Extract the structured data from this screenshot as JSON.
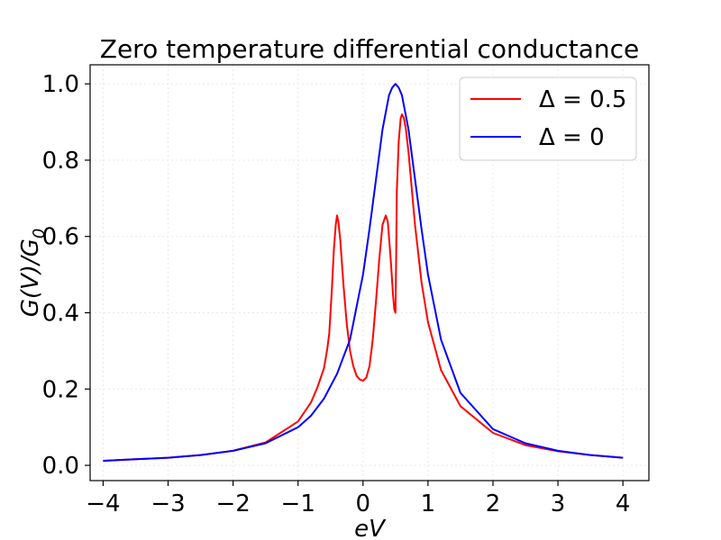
{
  "chart_data": {
    "type": "line",
    "title": "Zero temperature differential conductance",
    "xlabel": "eV",
    "ylabel_main": "G(V)/G",
    "ylabel_sub": "0",
    "xlim": [
      -4.2,
      4.4
    ],
    "ylim": [
      -0.04,
      1.05
    ],
    "xticks": [
      -4,
      -3,
      -2,
      -1,
      0,
      1,
      2,
      3,
      4
    ],
    "xtick_labels": [
      "−4",
      "−3",
      "−2",
      "−1",
      "0",
      "1",
      "2",
      "3",
      "4"
    ],
    "yticks": [
      0.0,
      0.2,
      0.4,
      0.6,
      0.8,
      1.0
    ],
    "ytick_labels": [
      "0.0",
      "0.2",
      "0.4",
      "0.6",
      "0.8",
      "1.0"
    ],
    "grid": true,
    "legend_position": "top-right",
    "series": [
      {
        "name": "Δ = 0.5",
        "color": "#ff0000",
        "x": [
          -4.0,
          -3.5,
          -3.0,
          -2.5,
          -2.0,
          -1.5,
          -1.0,
          -0.8,
          -0.7,
          -0.6,
          -0.55,
          -0.52,
          -0.5,
          -0.48,
          -0.45,
          -0.42,
          -0.4,
          -0.38,
          -0.35,
          -0.3,
          -0.25,
          -0.2,
          -0.15,
          -0.1,
          -0.05,
          0.0,
          0.05,
          0.1,
          0.15,
          0.2,
          0.25,
          0.3,
          0.35,
          0.38,
          0.4,
          0.43,
          0.46,
          0.48,
          0.5,
          0.51,
          0.52,
          0.55,
          0.58,
          0.6,
          0.63,
          0.66,
          0.7,
          0.8,
          0.9,
          1.0,
          1.2,
          1.5,
          2.0,
          2.5,
          3.0,
          3.5,
          4.0
        ],
        "y": [
          0.012,
          0.016,
          0.02,
          0.027,
          0.038,
          0.06,
          0.115,
          0.165,
          0.205,
          0.255,
          0.305,
          0.345,
          0.4,
          0.46,
          0.56,
          0.63,
          0.655,
          0.64,
          0.59,
          0.47,
          0.37,
          0.3,
          0.26,
          0.235,
          0.225,
          0.222,
          0.23,
          0.26,
          0.33,
          0.43,
          0.54,
          0.63,
          0.655,
          0.64,
          0.6,
          0.53,
          0.45,
          0.41,
          0.4,
          0.55,
          0.72,
          0.85,
          0.91,
          0.92,
          0.91,
          0.88,
          0.82,
          0.63,
          0.48,
          0.375,
          0.25,
          0.155,
          0.085,
          0.053,
          0.037,
          0.027,
          0.02
        ]
      },
      {
        "name": "Δ = 0",
        "color": "#0000ff",
        "x": [
          -4.0,
          -3.5,
          -3.0,
          -2.5,
          -2.0,
          -1.5,
          -1.0,
          -0.8,
          -0.6,
          -0.4,
          -0.2,
          0.0,
          0.1,
          0.2,
          0.3,
          0.4,
          0.45,
          0.5,
          0.55,
          0.6,
          0.7,
          0.8,
          0.9,
          1.0,
          1.2,
          1.5,
          2.0,
          2.5,
          3.0,
          3.5,
          4.0
        ],
        "y": [
          0.012,
          0.016,
          0.02,
          0.027,
          0.038,
          0.058,
          0.1,
          0.13,
          0.175,
          0.24,
          0.33,
          0.5,
          0.62,
          0.75,
          0.88,
          0.97,
          0.99,
          1.0,
          0.99,
          0.97,
          0.88,
          0.75,
          0.62,
          0.5,
          0.33,
          0.19,
          0.095,
          0.058,
          0.038,
          0.027,
          0.02
        ]
      }
    ]
  }
}
